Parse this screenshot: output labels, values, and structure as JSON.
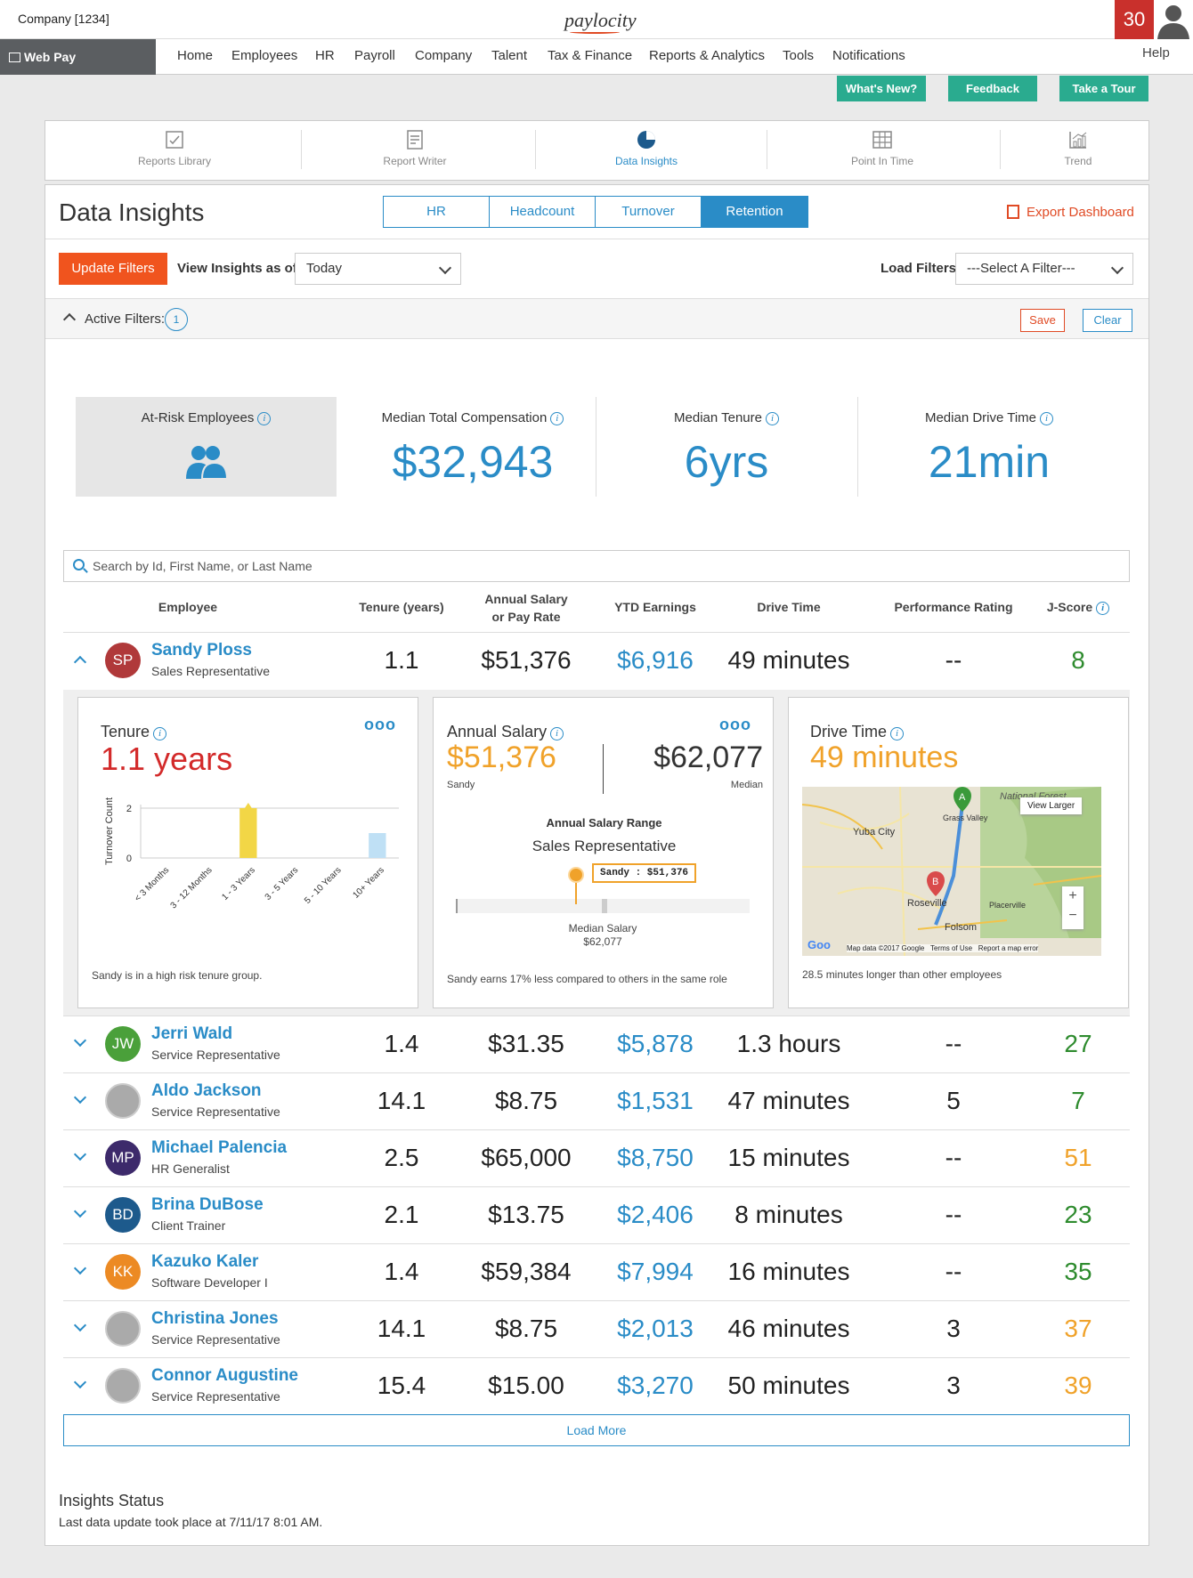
{
  "topbar": {
    "company": "Company [1234]",
    "logo": "paylocity",
    "notification_count": "30",
    "help": "Help"
  },
  "nav": {
    "app": "Web Pay",
    "items": [
      "Home",
      "Employees",
      "HR",
      "Payroll",
      "Company",
      "Talent",
      "Tax & Finance",
      "Reports & Analytics",
      "Tools",
      "Notifications"
    ]
  },
  "top_buttons": [
    "What's New?",
    "Feedback",
    "Take a Tour"
  ],
  "report_tabs": [
    "Reports Library",
    "Report Writer",
    "Data Insights",
    "Point In Time",
    "Trend"
  ],
  "active_report_tab": "Data Insights",
  "page_title": "Data Insights",
  "segments": [
    "HR",
    "Headcount",
    "Turnover",
    "Retention"
  ],
  "active_segment": "Retention",
  "export_label": "Export Dashboard",
  "filters": {
    "update_label": "Update Filters",
    "view_as_label": "View Insights as of",
    "view_as_value": "Today",
    "load_label": "Load Filters",
    "load_value": "---Select A Filter---",
    "active_label": "Active Filters:",
    "active_count": "1",
    "save_label": "Save",
    "clear_label": "Clear"
  },
  "kpis": [
    {
      "label": "At-Risk Employees",
      "value": ""
    },
    {
      "label": "Median Total Compensation",
      "value": "$32,943"
    },
    {
      "label": "Median Tenure",
      "value": "6yrs"
    },
    {
      "label": "Median Drive Time",
      "value": "21min"
    }
  ],
  "search_placeholder": "Search by Id, First Name, or Last Name",
  "table": {
    "headers": [
      "Employee",
      "Tenure (years)",
      "Annual Salary\nor Pay Rate",
      "YTD Earnings",
      "Drive Time",
      "Performance Rating",
      "J-Score"
    ],
    "rows": [
      {
        "initials": "SP",
        "name": "Sandy Ploss",
        "role": "Sales Representative",
        "tenure": "1.1",
        "salary": "$51,376",
        "ytd": "$6,916",
        "drive": "49 minutes",
        "rating": "--",
        "jscore": "8",
        "jcolor": "#2e8b2e",
        "avcolor": "#b0393a",
        "expanded": true
      },
      {
        "initials": "JW",
        "name": "Jerri Wald",
        "role": "Service Representative",
        "tenure": "1.4",
        "salary": "$31.35",
        "ytd": "$5,878",
        "drive": "1.3 hours",
        "rating": "--",
        "jscore": "27",
        "jcolor": "#2e8b2e",
        "avcolor": "#4aa03a"
      },
      {
        "initials": "",
        "name": "Aldo Jackson",
        "role": "Service Representative",
        "tenure": "14.1",
        "salary": "$8.75",
        "ytd": "$1,531",
        "drive": "47 minutes",
        "rating": "5",
        "jscore": "7",
        "jcolor": "#2e8b2e",
        "avcolor": "img"
      },
      {
        "initials": "MP",
        "name": "Michael Palencia",
        "role": "HR Generalist",
        "tenure": "2.5",
        "salary": "$65,000",
        "ytd": "$8,750",
        "drive": "15 minutes",
        "rating": "--",
        "jscore": "51",
        "jcolor": "#f0a22a",
        "avcolor": "#3d2a6b"
      },
      {
        "initials": "BD",
        "name": "Brina DuBose",
        "role": "Client Trainer",
        "tenure": "2.1",
        "salary": "$13.75",
        "ytd": "$2,406",
        "drive": "8 minutes",
        "rating": "--",
        "jscore": "23",
        "jcolor": "#2e8b2e",
        "avcolor": "#1d5a8c"
      },
      {
        "initials": "KK",
        "name": "Kazuko Kaler",
        "role": "Software Developer I",
        "tenure": "1.4",
        "salary": "$59,384",
        "ytd": "$7,994",
        "drive": "16 minutes",
        "rating": "--",
        "jscore": "35",
        "jcolor": "#2e8b2e",
        "avcolor": "#ec8a24"
      },
      {
        "initials": "",
        "name": "Christina Jones",
        "role": "Service Representative",
        "tenure": "14.1",
        "salary": "$8.75",
        "ytd": "$2,013",
        "drive": "46 minutes",
        "rating": "3",
        "jscore": "37",
        "jcolor": "#f0a22a",
        "avcolor": "img"
      },
      {
        "initials": "",
        "name": "Connor Augustine",
        "role": "Service Representative",
        "tenure": "15.4",
        "salary": "$15.00",
        "ytd": "$3,270",
        "drive": "50 minutes",
        "rating": "3",
        "jscore": "39",
        "jcolor": "#f0a22a",
        "avcolor": "img"
      }
    ]
  },
  "detail": {
    "tenure": {
      "title": "Tenure",
      "value": "1.1 years",
      "footer": "Sandy is in a high risk tenure group.",
      "chart_data": {
        "type": "bar",
        "ylabel": "Turnover Count",
        "categories": [
          "< 3 Months",
          "3 - 12 Months",
          "1 - 3 Years",
          "3 - 5 Years",
          "5 - 10 Years",
          "10+ Years"
        ],
        "values": [
          0,
          0,
          2,
          0,
          0,
          1
        ],
        "highlight": "1 - 3 Years",
        "yticks": [
          0,
          2
        ],
        "ylim": [
          0,
          2
        ]
      }
    },
    "salary": {
      "title": "Annual Salary",
      "employee_value": "$51,376",
      "employee_label": "Sandy",
      "median_value": "$62,077",
      "median_label": "Median",
      "range_title": "Annual Salary Range",
      "range_role": "Sales Representative",
      "tooltip": "Sandy : $51,376",
      "median_marker_label": "Median Salary",
      "median_marker_value": "$62,077",
      "footer": "Sandy earns 17% less compared to others in the same role"
    },
    "drive": {
      "title": "Drive Time",
      "value": "49 minutes",
      "view_larger": "View Larger",
      "map_labels": [
        "Yuba City",
        "Grass Valley",
        "Roseville",
        "Placerville",
        "Folsom",
        "National Forest"
      ],
      "map_footer": "Map data ©2017 Google",
      "map_terms": "Terms of Use",
      "map_report": "Report a map error",
      "footer": "28.5 minutes longer than other employees"
    }
  },
  "load_more": "Load More",
  "status": {
    "title": "Insights Status",
    "text": "Last data update took place at 7/11/17 8:01 AM."
  }
}
